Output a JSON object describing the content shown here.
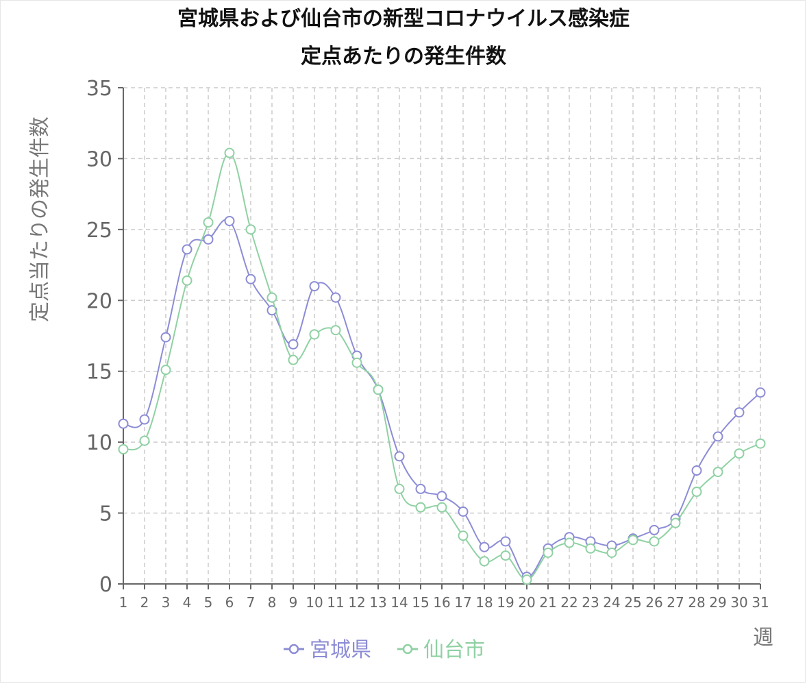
{
  "chart_data": {
    "type": "line",
    "title": [
      "宮城県および仙台市の新型コロナウイルス感染症",
      "定点あたりの発生件数"
    ],
    "xlabel": "週",
    "ylabel": "定点当たりの発生件数",
    "x": [
      1,
      2,
      3,
      4,
      5,
      6,
      7,
      8,
      9,
      10,
      11,
      12,
      13,
      14,
      15,
      16,
      17,
      18,
      19,
      20,
      21,
      22,
      23,
      24,
      25,
      26,
      27,
      28,
      29,
      30,
      31
    ],
    "ylim": [
      0,
      35
    ],
    "yticks": [
      0,
      5,
      10,
      15,
      20,
      25,
      30,
      35
    ],
    "grid": true,
    "legend_position": "bottom",
    "series": [
      {
        "name": "宮城県",
        "color": "#8c8cd6",
        "values": [
          11.3,
          11.6,
          17.4,
          23.6,
          24.3,
          25.6,
          21.5,
          19.3,
          16.9,
          21.0,
          20.2,
          16.1,
          13.7,
          9.0,
          6.7,
          6.2,
          5.1,
          2.6,
          3.0,
          0.5,
          2.5,
          3.3,
          3.0,
          2.7,
          3.2,
          3.8,
          4.6,
          8.0,
          10.4,
          12.1,
          13.5
        ]
      },
      {
        "name": "仙台市",
        "color": "#8fd1a3",
        "values": [
          9.5,
          10.1,
          15.1,
          21.4,
          25.5,
          30.4,
          25.0,
          20.2,
          15.8,
          17.6,
          17.9,
          15.6,
          13.7,
          6.7,
          5.4,
          5.4,
          3.4,
          1.6,
          2.0,
          0.3,
          2.2,
          2.9,
          2.5,
          2.2,
          3.1,
          3.0,
          4.3,
          6.5,
          7.9,
          9.2,
          9.9
        ]
      }
    ]
  }
}
